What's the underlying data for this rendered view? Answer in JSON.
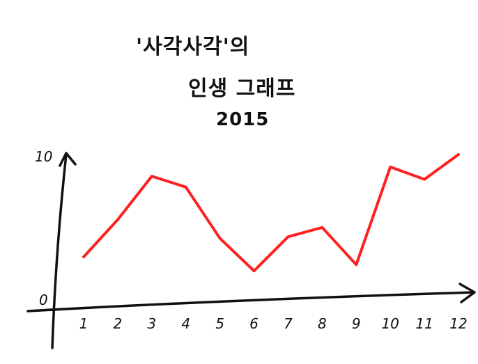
{
  "chart_data": {
    "type": "line",
    "title_lines": [
      "'사각사각'의",
      "인생 그래프",
      "2015"
    ],
    "xlabel": "",
    "ylabel": "",
    "x": [
      1,
      2,
      3,
      4,
      5,
      6,
      7,
      8,
      9,
      10,
      11,
      12
    ],
    "x_tick_labels": [
      "1",
      "2",
      "3",
      "4",
      "5",
      "6",
      "7",
      "8",
      "9",
      "10",
      "11",
      "12"
    ],
    "y_tick_labels": [
      "0",
      "10"
    ],
    "ylim": [
      0,
      10
    ],
    "grid": false,
    "series": [
      {
        "values": [
          3.4,
          5.8,
          8.6,
          7.9,
          4.6,
          2.5,
          4.7,
          5.3,
          2.9,
          9.2,
          8.4,
          10.0
        ],
        "color": "#ff2020"
      }
    ],
    "axis_color": "#111111"
  }
}
